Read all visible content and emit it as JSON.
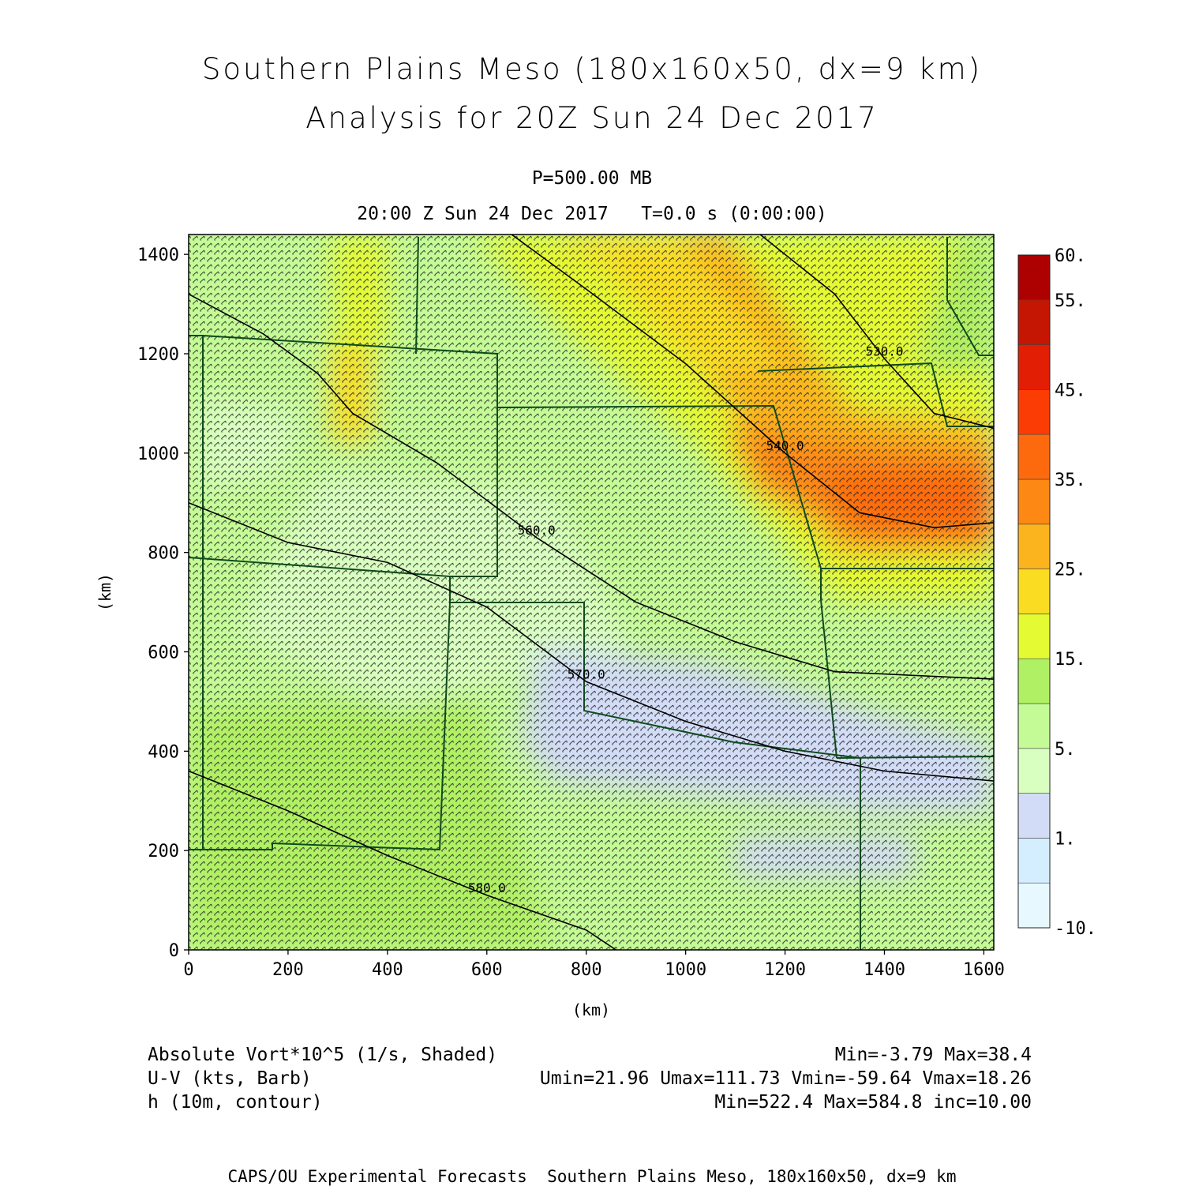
{
  "title": {
    "line1": "Southern Plains Meso (180x160x50, dx=9 km)",
    "line2": "Analysis for 20Z Sun 24 Dec 2017"
  },
  "subtitle": {
    "level": "P=500.00 MB",
    "time": "20:00 Z Sun 24 Dec 2017   T=0.0 s (0:00:00)"
  },
  "legend_footer": {
    "line1_left": "Absolute Vort*10^5 (1/s, Shaded)",
    "line1_right": "Min=-3.79 Max=38.4",
    "line2_left": "U-V (kts, Barb)",
    "line2_right": "Umin=21.96 Umax=111.73 Vmin=-59.64 Vmax=18.26",
    "line3_left": "h (10m, contour)",
    "line3_right": "Min=522.4 Max=584.8 inc=10.00"
  },
  "credit": "CAPS/OU Experimental Forecasts  Southern Plains Meso, 180x160x50, dx=9 km",
  "chart_data": {
    "type": "heatmap",
    "xlabel": "(km)",
    "ylabel": "(km)",
    "xlim": [
      0,
      1620
    ],
    "ylim": [
      0,
      1440
    ],
    "x_ticks": [
      0,
      200,
      400,
      600,
      800,
      1000,
      1200,
      1400,
      1600
    ],
    "y_ticks": [
      0,
      200,
      400,
      600,
      800,
      1000,
      1200,
      1400
    ],
    "colorbar": {
      "ticks": [
        "60.",
        "55.",
        "45.",
        "35.",
        "25.",
        "15.",
        "5.",
        "1.",
        "-10."
      ],
      "levels": [
        -10,
        -5,
        1,
        2,
        5,
        10,
        15,
        20,
        25,
        30,
        35,
        40,
        45,
        50,
        55,
        60
      ],
      "colors": [
        "#e8f8ff",
        "#d5eeff",
        "#d2dcf6",
        "#d9ffc0",
        "#c4fb96",
        "#b0f064",
        "#e4fa32",
        "#fadd22",
        "#fbb41d",
        "#fd8813",
        "#fd6a0e",
        "#fc3c05",
        "#e21e04",
        "#c41602",
        "#ad0000"
      ]
    },
    "vorticity_features": [
      {
        "feature": "maximum",
        "x_km": 1500,
        "y_km": 900,
        "value": 38.4
      },
      {
        "feature": "band",
        "x_km": 880,
        "y_km": 1300,
        "value": 25
      },
      {
        "feature": "band",
        "x_km": 330,
        "y_km": 1130,
        "value": 22
      },
      {
        "feature": "minimum",
        "x_km": 1100,
        "y_km": 380,
        "value": -3.79
      }
    ],
    "height_contours": [
      {
        "label": "560.0",
        "points": [
          [
            0,
            1320
          ],
          [
            150,
            1240
          ],
          [
            260,
            1160
          ],
          [
            330,
            1080
          ],
          [
            500,
            980
          ],
          [
            700,
            830
          ],
          [
            900,
            700
          ],
          [
            1100,
            620
          ],
          [
            1300,
            560
          ],
          [
            1620,
            545
          ]
        ]
      },
      {
        "label": "570.0",
        "points": [
          [
            0,
            900
          ],
          [
            200,
            820
          ],
          [
            400,
            780
          ],
          [
            600,
            690
          ],
          [
            800,
            540
          ],
          [
            1000,
            460
          ],
          [
            1200,
            400
          ],
          [
            1400,
            360
          ],
          [
            1620,
            340
          ]
        ]
      },
      {
        "label": "580.0",
        "points": [
          [
            0,
            360
          ],
          [
            200,
            280
          ],
          [
            400,
            190
          ],
          [
            600,
            110
          ],
          [
            800,
            40
          ],
          [
            860,
            0
          ]
        ]
      },
      {
        "label": "540.0",
        "points": [
          [
            650,
            1440
          ],
          [
            800,
            1330
          ],
          [
            1000,
            1180
          ],
          [
            1200,
            1000
          ],
          [
            1350,
            880
          ],
          [
            1500,
            850
          ],
          [
            1620,
            860
          ]
        ]
      },
      {
        "label": "530.0",
        "points": [
          [
            1150,
            1440
          ],
          [
            1300,
            1320
          ],
          [
            1400,
            1190
          ],
          [
            1500,
            1080
          ],
          [
            1620,
            1050
          ]
        ]
      }
    ],
    "wind": {
      "u_min": 21.96,
      "u_max": 111.73,
      "v_min": -59.64,
      "v_max": 18.26
    }
  },
  "colors": {
    "background": "#ffffff",
    "text": "#000000",
    "borders": "#0f4a1c",
    "contours": "#000000"
  }
}
